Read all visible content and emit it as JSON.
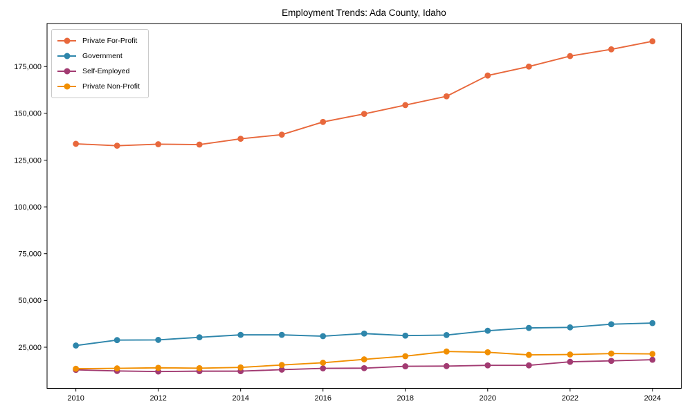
{
  "chart_data": {
    "type": "line",
    "title": "Employment Trends: Ada County, Idaho",
    "xlabel": "",
    "ylabel": "",
    "grid": false,
    "legend_position": "upper-left",
    "marker": "circle",
    "x": [
      2010,
      2011,
      2012,
      2013,
      2014,
      2015,
      2016,
      2017,
      2018,
      2019,
      2020,
      2021,
      2022,
      2023,
      2024
    ],
    "x_ticks": [
      2010,
      2012,
      2014,
      2016,
      2018,
      2020,
      2022,
      2024
    ],
    "x_tick_labels": [
      "2010",
      "2012",
      "2014",
      "2016",
      "2018",
      "2020",
      "2022",
      "2024"
    ],
    "y_ticks": [
      25000,
      50000,
      75000,
      100000,
      125000,
      150000,
      175000
    ],
    "y_tick_labels": [
      "25,000",
      "50,000",
      "75,000",
      "100,000",
      "125,000",
      "150,000",
      "175,000"
    ],
    "xlim": [
      2009.3,
      2024.7
    ],
    "ylim": [
      3000,
      198000
    ],
    "series": [
      {
        "name": "Private For-Profit",
        "color": "#e8683c",
        "values": [
          133700,
          132700,
          133500,
          133300,
          136400,
          138600,
          145400,
          149700,
          154400,
          159100,
          170200,
          175000,
          180600,
          184200,
          188500
        ]
      },
      {
        "name": "Government",
        "color": "#2e86ab",
        "values": [
          25900,
          28800,
          28900,
          30300,
          31600,
          31600,
          30900,
          32300,
          31200,
          31500,
          33800,
          35300,
          35600,
          37300,
          37900
        ]
      },
      {
        "name": "Self-Employed",
        "color": "#a23b72",
        "values": [
          12900,
          12300,
          12000,
          12200,
          12200,
          13000,
          13700,
          13800,
          14800,
          14900,
          15300,
          15300,
          17200,
          17700,
          18300
        ]
      },
      {
        "name": "Private Non-Profit",
        "color": "#f18f01",
        "values": [
          13500,
          13700,
          14000,
          13800,
          14200,
          15500,
          16700,
          18500,
          20200,
          22700,
          22300,
          20900,
          21100,
          21600,
          21400
        ]
      }
    ]
  }
}
